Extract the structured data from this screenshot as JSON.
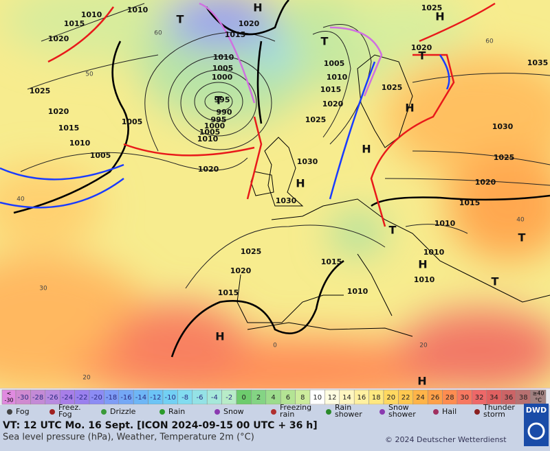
{
  "map": {
    "pressure_labels": [
      "1010",
      "1010",
      "1015",
      "1020",
      "1025",
      "1020",
      "1015",
      "1010",
      "1005",
      "1005",
      "1020",
      "1015",
      "1010",
      "1005",
      "1000",
      "995",
      "990",
      "995",
      "1000",
      "1005",
      "1010",
      "1020",
      "1025",
      "1030",
      "1030",
      "1025",
      "1020",
      "1015",
      "1015",
      "1010",
      "1005",
      "1010",
      "1015",
      "1020",
      "1025",
      "1025",
      "1020",
      "1035",
      "1030",
      "1025",
      "1020",
      "1015",
      "1010",
      "1010",
      "1010"
    ],
    "pressure_centers": [
      "H",
      "T",
      "T",
      "T",
      "H",
      "H",
      "H",
      "T",
      "H",
      "T",
      "T",
      "H",
      "H",
      "H",
      "T"
    ],
    "grid_labels": [
      "60",
      "50",
      "40",
      "30",
      "20",
      "60",
      "40",
      "20",
      "0"
    ]
  },
  "color_scale": {
    "below": [
      "<",
      "-30"
    ],
    "values": [
      -30,
      -28,
      -26,
      -24,
      -22,
      -20,
      -18,
      -16,
      -14,
      -12,
      -10,
      -8,
      -6,
      -4,
      -2,
      0,
      2,
      4,
      6,
      8,
      10,
      12,
      14,
      16,
      18,
      20,
      22,
      24,
      26,
      28,
      30,
      32,
      34,
      36,
      38
    ],
    "colors": [
      "#d08ad0",
      "#c48ad6",
      "#b88ae0",
      "#a87ee8",
      "#9a80ee",
      "#8c8cf4",
      "#7e9cf6",
      "#74a8f6",
      "#6eb6f6",
      "#6cc4f6",
      "#72d0f4",
      "#82dcf0",
      "#94e2e6",
      "#a6e8da",
      "#b8ecc8",
      "#6dcc6d",
      "#84d484",
      "#9cdc8c",
      "#b4e494",
      "#ccec9c",
      "#ffffff",
      "#fffce0",
      "#fff6c0",
      "#fff0a0",
      "#ffe880",
      "#ffd860",
      "#ffc850",
      "#ffb448",
      "#ffa048",
      "#ff8c50",
      "#f87860",
      "#ee6868",
      "#e06060",
      "#cc6466",
      "#b87070"
    ],
    "above": [
      "≥40",
      "°C"
    ],
    "below_color": "#e08ae0",
    "above_color": "#a08080"
  },
  "legend": [
    [
      "Fog"
    ],
    [
      "Freez.",
      "Fog"
    ],
    [
      "Drizzle"
    ],
    [
      "Rain"
    ],
    [
      "Snow"
    ],
    [
      "Freezing",
      "rain"
    ],
    [
      "Rain",
      "shower"
    ],
    [
      "Snow",
      "shower"
    ],
    [
      "Hail"
    ],
    [
      "Thunder",
      "storm"
    ]
  ],
  "footer": {
    "valid_time": "VT: 12 UTC Mo.  16 Sept. [ICON 2024-09-15  00 UTC + 36 h]",
    "description": "Sea level pressure (hPa), Weather, Temperature 2m (°C)",
    "copyright": "© 2024 Deutscher Wetterdienst",
    "logo": "DWD"
  }
}
